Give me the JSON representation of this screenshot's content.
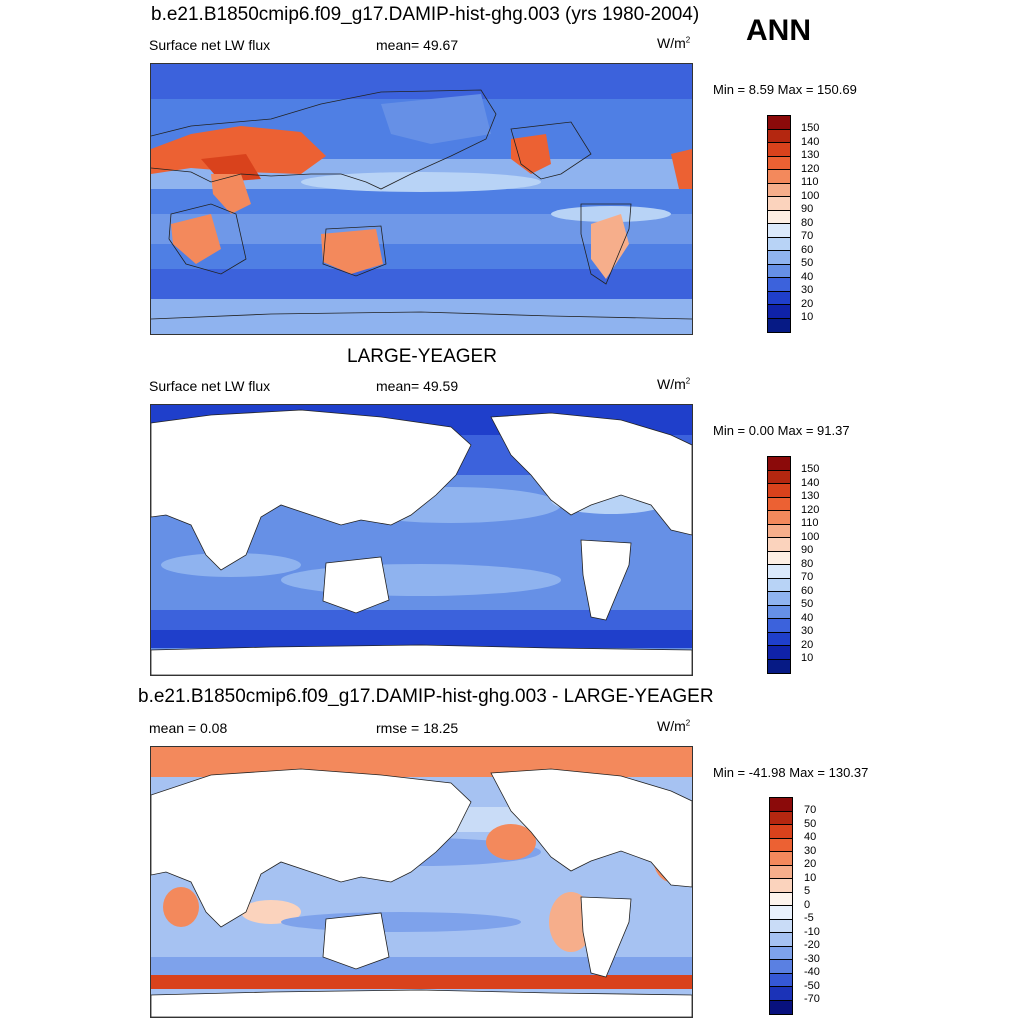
{
  "season": "ANN",
  "panels": [
    {
      "title": "b.e21.B1850cmip6.f09_g17.DAMIP-hist-ghg.003 (yrs 1980-2004)",
      "left": "Surface net LW flux",
      "mid": "mean=  49.67",
      "units": "W/m",
      "units_sup": "2",
      "minmax": "Min =   8.59 Max = 150.69",
      "colorbar_labels": [
        "150",
        "140",
        "130",
        "120",
        "110",
        "100",
        "90",
        "80",
        "70",
        "60",
        "50",
        "40",
        "30",
        "20",
        "10"
      ]
    },
    {
      "title": "LARGE-YEAGER",
      "left": "Surface net LW flux",
      "mid": "mean=  49.59",
      "units": "W/m",
      "units_sup": "2",
      "minmax": "Min =   0.00 Max =  91.37",
      "colorbar_labels": [
        "150",
        "140",
        "130",
        "120",
        "110",
        "100",
        "90",
        "80",
        "70",
        "60",
        "50",
        "40",
        "30",
        "20",
        "10"
      ]
    },
    {
      "title": "b.e21.B1850cmip6.f09_g17.DAMIP-hist-ghg.003 - LARGE-YEAGER",
      "left": "mean =   0.08",
      "mid": "rmse =  18.25",
      "units": "W/m",
      "units_sup": "2",
      "minmax": "Min = -41.98 Max = 130.37",
      "colorbar_labels": [
        "70",
        "50",
        "40",
        "30",
        "20",
        "10",
        "5",
        "0",
        "-5",
        "-10",
        "-20",
        "-30",
        "-40",
        "-50",
        "-70"
      ]
    }
  ],
  "colors": {
    "seq_palette": [
      "#8b0a0a",
      "#b42710",
      "#d9421c",
      "#ec6133",
      "#f3895c",
      "#f6ae8b",
      "#fbd3bd",
      "#fdeee3",
      "#dbe9fb",
      "#b8d3f6",
      "#8fb3ef",
      "#6690e6",
      "#3c62dc",
      "#1f3fcb",
      "#0f22a8",
      "#061a85"
    ],
    "div_palette": [
      "#8b0a0a",
      "#b42710",
      "#d9421c",
      "#ec6133",
      "#f3895c",
      "#f6ae8b",
      "#fbd3bd",
      "#fdf3ec",
      "#e9f1fc",
      "#c9dcf7",
      "#a6c2f2",
      "#7ea2eb",
      "#5a80e2",
      "#3558d6",
      "#1b33b8",
      "#08117e"
    ],
    "land": "#ffffff",
    "coast": "#222222"
  }
}
